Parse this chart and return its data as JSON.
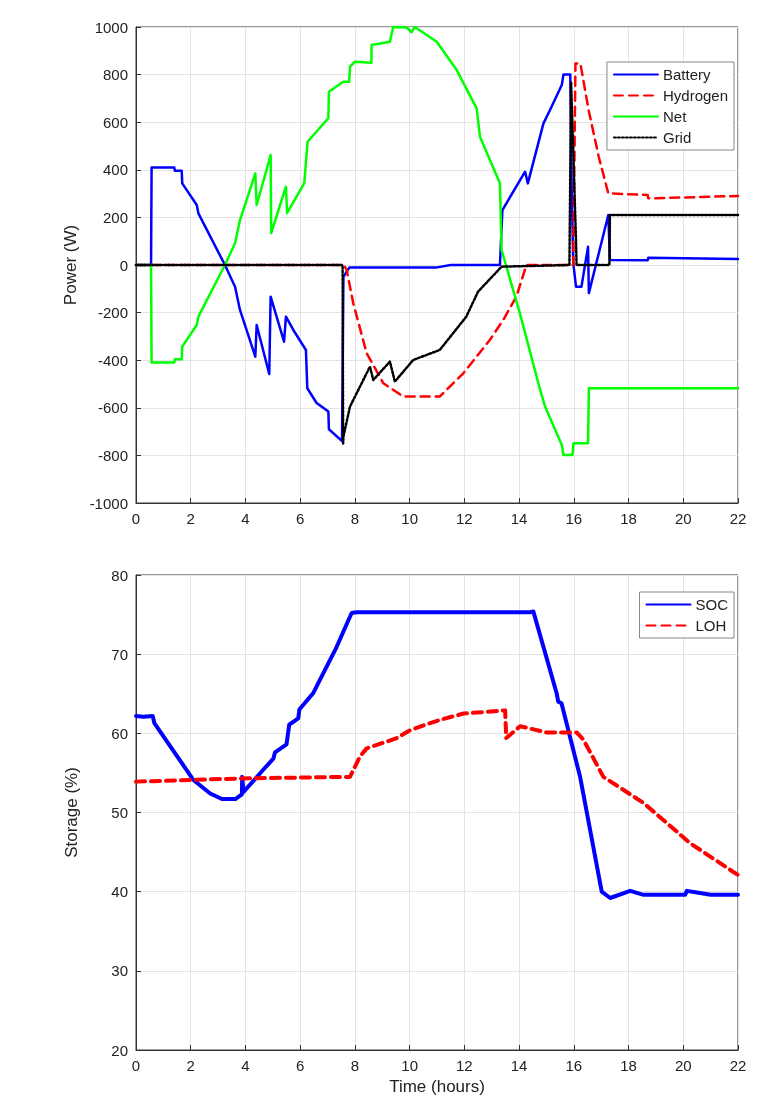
{
  "chart_data": [
    {
      "type": "line",
      "ylabel": "Power (W)",
      "xlim": [
        0,
        22
      ],
      "xticks": [
        0,
        2,
        4,
        6,
        8,
        10,
        12,
        14,
        16,
        18,
        20,
        22
      ],
      "ylim": [
        -1000,
        1000
      ],
      "yticks": [
        -1000,
        -800,
        -600,
        -400,
        -200,
        0,
        200,
        400,
        600,
        800,
        1000
      ],
      "grid": true,
      "legend": "top right",
      "marker": "none",
      "series": [
        {
          "name": "Battery",
          "color": "#0000ff",
          "line_style": "solid",
          "x": [
            0,
            0.55,
            0.57,
            1.4,
            1.42,
            1.67,
            1.69,
            2.22,
            2.28,
            3.25,
            3.62,
            3.8,
            4.36,
            4.41,
            4.87,
            4.92,
            5.41,
            5.48,
            5.75,
            6.21,
            6.26,
            6.6,
            7.03,
            7.05,
            7.53,
            7.58,
            7.8,
            9,
            10,
            11,
            11.5,
            13.3,
            13.39,
            14.22,
            14.32,
            14.89,
            15.13,
            15.56,
            15.62,
            15.87,
            15.92,
            15.98,
            16.08,
            16.28,
            16.52,
            16.55,
            17.26,
            17.32,
            18.7,
            18.72,
            22
          ],
          "values": [
            0,
            0,
            410,
            410,
            396,
            396,
            343,
            252,
            217,
            0,
            -91,
            -189,
            -385,
            -252,
            -458,
            -133,
            -322,
            -217,
            -273,
            -357,
            -518,
            -580,
            -616,
            -690,
            -740,
            -50,
            -10,
            -10,
            -10,
            -10,
            0,
            0,
            231,
            392,
            343,
            595,
            651,
            756,
            800,
            800,
            329,
            8,
            -91,
            -91,
            77,
            -118,
            210,
            21,
            20,
            30,
            25
          ]
        },
        {
          "name": "Hydrogen",
          "color": "#ff0000",
          "line_style": "dashed",
          "x": [
            0,
            7.6,
            7.7,
            7.94,
            8.43,
            9.04,
            9.77,
            11.1,
            11.96,
            12.93,
            13.42,
            13.9,
            14.27,
            15.98,
            16.06,
            16.24,
            16.54,
            16.91,
            17.26,
            18.7,
            18.72,
            22
          ],
          "values": [
            0,
            0,
            -21,
            -161,
            -371,
            -497,
            -553,
            -553,
            -455,
            -315,
            -231,
            -133,
            0,
            0,
            847,
            847,
            651,
            455,
            301,
            294,
            280,
            290
          ]
        },
        {
          "name": "Net",
          "color": "#00ff00",
          "line_style": "solid",
          "x": [
            0,
            0.55,
            0.57,
            1.4,
            1.42,
            1.67,
            1.69,
            2.22,
            2.28,
            3.25,
            3.62,
            3.8,
            4.36,
            4.41,
            4.92,
            4.94,
            5.48,
            5.52,
            6.15,
            6.27,
            7.03,
            7.05,
            7.57,
            7.79,
            7.82,
            8.0,
            8.6,
            8.61,
            9.28,
            9.4,
            9.89,
            10.07,
            10.19,
            10.99,
            11.72,
            12.45,
            12.57,
            13.3,
            13.36,
            14.03,
            14.77,
            14.95,
            15.56,
            15.62,
            15.95,
            15.99,
            16.52,
            16.55,
            22
          ],
          "values": [
            0,
            0,
            -410,
            -410,
            -396,
            -396,
            -343,
            -252,
            -217,
            0,
            91,
            189,
            385,
            252,
            462,
            134,
            329,
            218,
            344,
            518,
            617,
            728,
            770,
            770,
            833,
            854,
            850,
            924,
            938,
            1000,
            998,
            978,
            1000,
            938,
            819,
            658,
            539,
            343,
            63,
            -203,
            -525,
            -595,
            -756,
            -798,
            -798,
            -749,
            -749,
            -518,
            -518
          ]
        },
        {
          "name": "Grid",
          "color": "#000000",
          "line_style": "dotted",
          "x": [
            0,
            7.55,
            7.57,
            7.58,
            7.82,
            8.55,
            8.67,
            9.28,
            9.46,
            10.13,
            11.1,
            12.07,
            12.5,
            13.36,
            15.84,
            15.9,
            16.08,
            16.1,
            17.3,
            17.32,
            22
          ],
          "values": [
            0,
            0,
            -750,
            -721,
            -595,
            -427,
            -483,
            -406,
            -490,
            -399,
            -357,
            -217,
            -112,
            -7,
            0,
            770,
            105,
            0,
            0,
            210,
            210
          ]
        }
      ]
    },
    {
      "type": "line",
      "xlabel": "Time (hours)",
      "ylabel": "Storage (%)",
      "xlim": [
        0,
        22
      ],
      "xticks": [
        0,
        2,
        4,
        6,
        8,
        10,
        12,
        14,
        16,
        18,
        20,
        22
      ],
      "ylim": [
        20,
        80
      ],
      "yticks": [
        20,
        30,
        40,
        50,
        60,
        70,
        80
      ],
      "grid": true,
      "legend": "top right",
      "marker": "none",
      "series": [
        {
          "name": "SOC",
          "color": "#0000ff",
          "line_style": "solid",
          "x": [
            0,
            0.27,
            0.61,
            0.67,
            2.1,
            2.71,
            3.14,
            3.63,
            3.87,
            3.88,
            3.93,
            4.65,
            5.02,
            5.08,
            5.5,
            5.6,
            5.93,
            5.97,
            6.48,
            7.33,
            7.88,
            8.06,
            14.4,
            14.52,
            15.37,
            15.43,
            15.55,
            16.23,
            17.02,
            17.33,
            18.06,
            18.55,
            20.07,
            20.13,
            20.5,
            21,
            22
          ],
          "values": [
            62.2,
            62.1,
            62.2,
            61.3,
            54.1,
            52.4,
            51.7,
            51.7,
            52.3,
            54.5,
            52.6,
            55.4,
            56.8,
            57.6,
            58.6,
            61.1,
            61.9,
            63,
            65.1,
            70.9,
            75.2,
            75.3,
            75.3,
            75.4,
            65.1,
            64,
            63.8,
            54.5,
            40,
            39.2,
            40.1,
            39.6,
            39.6,
            40.1,
            39.9,
            39.6,
            39.6
          ]
        },
        {
          "name": "LOH",
          "color": "#ff0000",
          "line_style": "dashed",
          "x": [
            0,
            3.85,
            7.6,
            7.82,
            8.19,
            8.43,
            9.53,
            10.02,
            10.75,
            11.11,
            11.97,
            13.49,
            13.53,
            14.04,
            15.01,
            16.11,
            16.35,
            17.08,
            18.55,
            20.26,
            22
          ],
          "values": [
            53.9,
            54.3,
            54.5,
            54.5,
            57.1,
            58.1,
            59.4,
            60.4,
            61.3,
            61.7,
            62.5,
            62.9,
            59.4,
            60.9,
            60.1,
            60.1,
            59.2,
            54.5,
            51.2,
            46.1,
            42.1
          ]
        }
      ]
    }
  ]
}
